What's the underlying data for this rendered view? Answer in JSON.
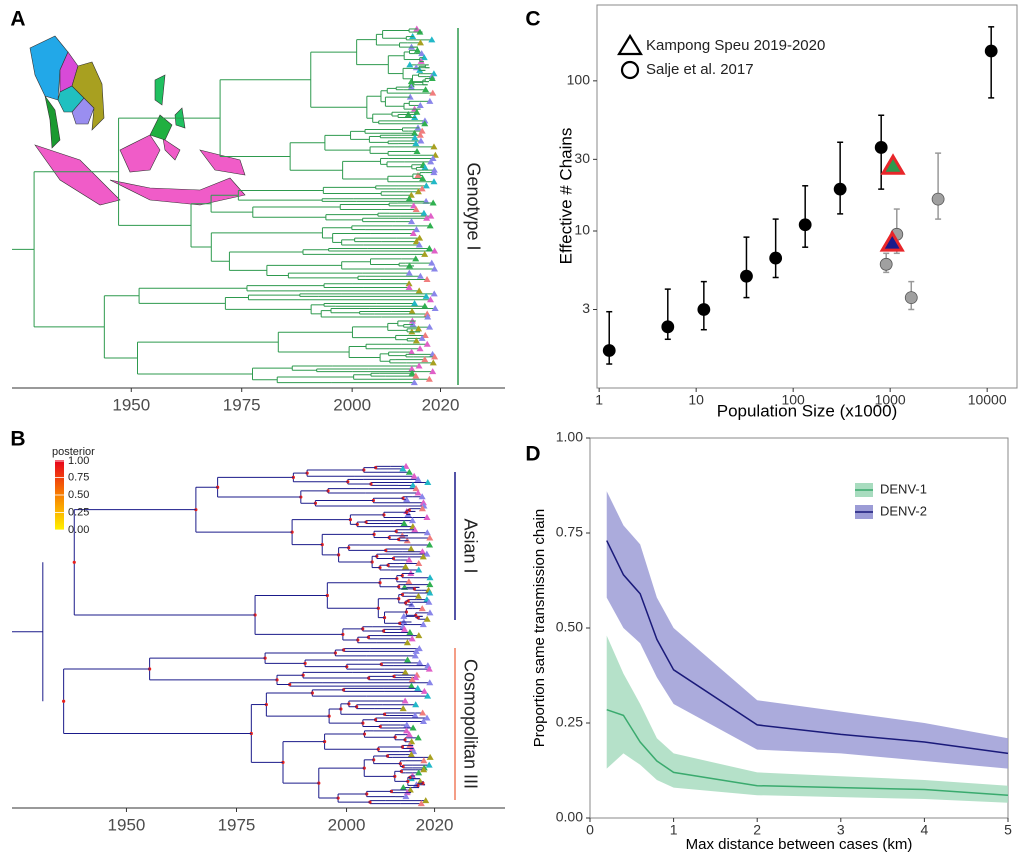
{
  "chart_data": [
    {
      "type": "tree",
      "panel": "A",
      "xlim": [
        1923,
        2034.6
      ],
      "xticks": [
        1950,
        1975,
        2000,
        2020
      ],
      "clades": [
        {
          "label": "Genotype I",
          "color": "#2e9a4e"
        }
      ]
    },
    {
      "type": "tree",
      "panel": "B",
      "xlim": [
        1924,
        2036
      ],
      "xticks": [
        1950,
        1975,
        2000,
        2020
      ],
      "clades": [
        {
          "label": "Asian I",
          "color": "#1a1a8a"
        },
        {
          "label": "Cosmopolitan III",
          "color": "#f07d5e"
        }
      ],
      "legend_title": "posterior",
      "legend_ticks": [
        {
          "value": 1,
          "label": "1.00"
        },
        {
          "value": 0.75,
          "label": "0.75"
        },
        {
          "value": 0.5,
          "label": "0.50"
        },
        {
          "value": 0.25,
          "label": "0.25"
        },
        {
          "value": 0,
          "label": "0.00"
        }
      ]
    },
    {
      "type": "scatter",
      "panel": "C",
      "log_x": true,
      "log_y": true,
      "x_label": "Population Size (x1000)",
      "y_label": "Effective # Chains",
      "xlim": [
        0.95,
        20300
      ],
      "ylim": [
        0.9,
        320
      ],
      "xticks": [
        1,
        10,
        100,
        1000,
        10000
      ],
      "yticks": [
        3,
        10,
        30,
        100
      ],
      "series": [
        {
          "name": "Salje et al. 2017",
          "marker": "circle",
          "color": "#000000",
          "x": [
            1.27,
            5.1,
            12,
            33,
            66,
            133,
            305,
            808,
            11000
          ],
          "values": [
            1.6,
            2.3,
            3.0,
            5.0,
            6.6,
            11,
            19,
            36,
            158
          ],
          "lower": [
            1.3,
            1.9,
            2.2,
            3.6,
            4.9,
            7.8,
            13,
            19,
            77
          ],
          "upper": [
            2.9,
            4.1,
            4.6,
            9.1,
            12,
            20,
            39,
            59,
            229
          ]
        },
        {
          "marker": "circle",
          "color": "#999999",
          "x": [
            910,
            1170,
            1650,
            3120
          ],
          "values": [
            6.0,
            9.5,
            3.6,
            16.3
          ],
          "lower": [
            5.3,
            7.1,
            3.0,
            12
          ],
          "upper": [
            7.1,
            14,
            4.6,
            33
          ]
        },
        {
          "name": "Kampong Speu 2019-2020",
          "marker": "triangle",
          "color": "#e8262a",
          "x": [
            1070,
            1050
          ],
          "values": [
            27,
            8.3
          ],
          "point_colors": [
            "#2e9a4e",
            "#1a1a8a"
          ]
        }
      ]
    },
    {
      "type": "line",
      "panel": "D",
      "x_label": "Max distance between cases (km)",
      "y_label": "Proportion same transmission chain",
      "xlim": [
        0,
        5
      ],
      "ylim": [
        0,
        1
      ],
      "xticks": [
        0,
        1,
        2,
        3,
        4,
        5
      ],
      "yticks": [
        {
          "value": 0,
          "label": "0.00"
        },
        {
          "value": 0.25,
          "label": "0.25"
        },
        {
          "value": 0.5,
          "label": "0.50"
        },
        {
          "value": 0.75,
          "label": "0.75"
        },
        {
          "value": 1,
          "label": "1.00"
        }
      ],
      "x": [
        0.2,
        0.4,
        0.6,
        0.8,
        1,
        2,
        3,
        4,
        5
      ],
      "series": [
        {
          "name": "DENV-1",
          "color": "#3aaa6e",
          "band_color": "#a8dcbf",
          "values": [
            0.285,
            0.27,
            0.2,
            0.15,
            0.12,
            0.085,
            0.08,
            0.075,
            0.06
          ],
          "lower": [
            0.13,
            0.17,
            0.14,
            0.1,
            0.08,
            0.06,
            0.055,
            0.05,
            0.04
          ],
          "upper": [
            0.48,
            0.38,
            0.3,
            0.21,
            0.17,
            0.12,
            0.11,
            0.1,
            0.085
          ]
        },
        {
          "name": "DENV-2",
          "color": "#1a1a7a",
          "band_color": "#9c9cd6",
          "values": [
            0.73,
            0.64,
            0.59,
            0.47,
            0.39,
            0.245,
            0.22,
            0.2,
            0.17
          ],
          "lower": [
            0.58,
            0.5,
            0.46,
            0.37,
            0.3,
            0.18,
            0.17,
            0.15,
            0.13
          ],
          "upper": [
            0.86,
            0.77,
            0.72,
            0.58,
            0.5,
            0.31,
            0.28,
            0.25,
            0.21
          ]
        }
      ]
    }
  ]
}
